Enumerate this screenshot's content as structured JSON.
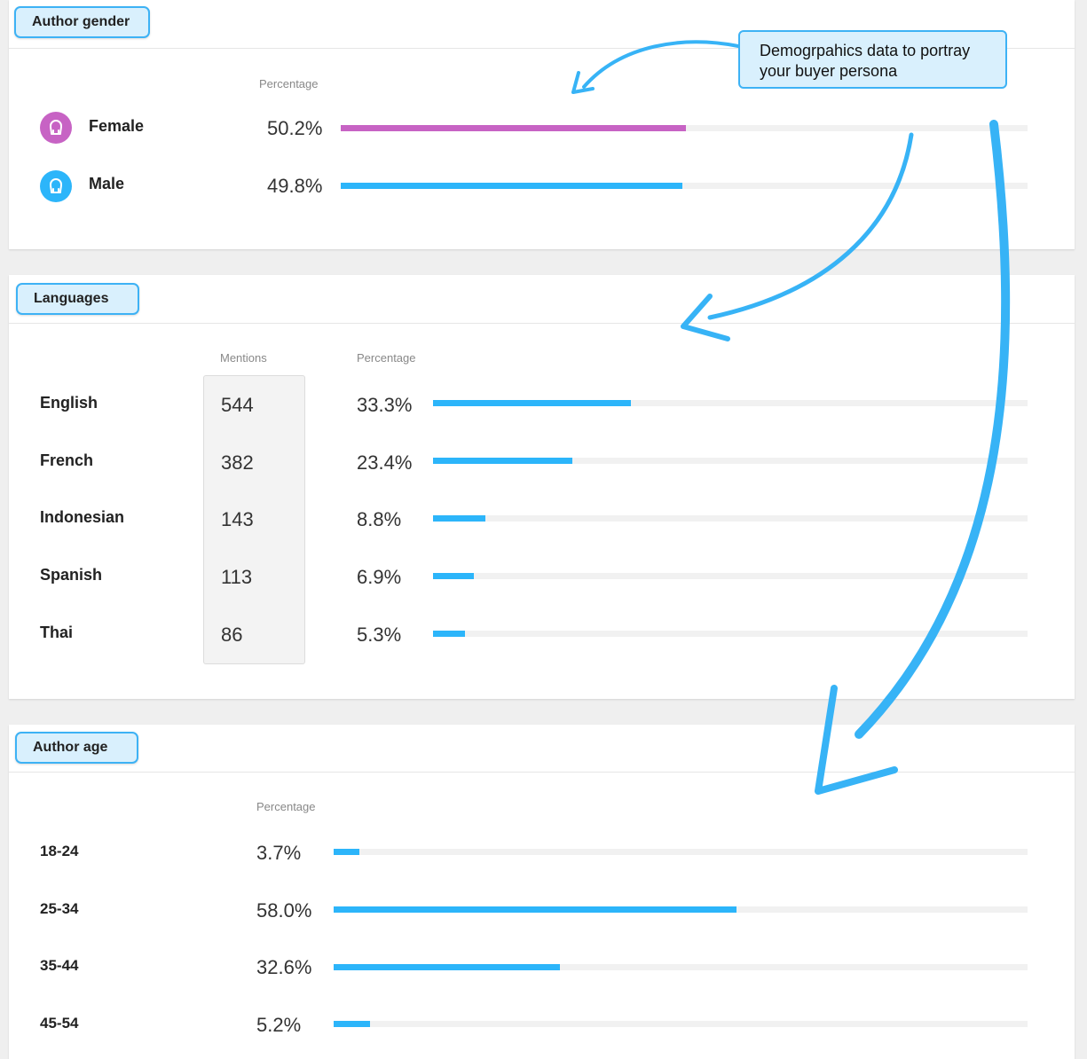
{
  "gender": {
    "tag": "Author gender",
    "col_percentage": "Percentage",
    "rows": [
      {
        "label": "Female",
        "pct_text": "50.2%",
        "value": 50.2
      },
      {
        "label": "Male",
        "pct_text": "49.8%",
        "value": 49.8
      }
    ]
  },
  "languages": {
    "tag": "Languages",
    "col_mentions": "Mentions",
    "col_percentage": "Percentage",
    "rows": [
      {
        "label": "English",
        "mentions": "544",
        "pct_text": "33.3%",
        "value": 33.3
      },
      {
        "label": "French",
        "mentions": "382",
        "pct_text": "23.4%",
        "value": 23.4
      },
      {
        "label": "Indonesian",
        "mentions": "143",
        "pct_text": "8.8%",
        "value": 8.8
      },
      {
        "label": "Spanish",
        "mentions": "113",
        "pct_text": "6.9%",
        "value": 6.9
      },
      {
        "label": "Thai",
        "mentions": "86",
        "pct_text": "5.3%",
        "value": 5.3
      }
    ]
  },
  "age": {
    "tag": "Author age",
    "col_percentage": "Percentage",
    "rows": [
      {
        "label": "18-24",
        "pct_text": "3.7%",
        "value": 3.7
      },
      {
        "label": "25-34",
        "pct_text": "58.0%",
        "value": 58.0
      },
      {
        "label": "35-44",
        "pct_text": "32.6%",
        "value": 32.6
      },
      {
        "label": "45-54",
        "pct_text": "5.2%",
        "value": 5.2
      }
    ]
  },
  "callout": {
    "line1": "Demogrpahics data to portray",
    "line2": "your buyer persona"
  },
  "icons": {
    "female": "female-user-icon",
    "male": "male-user-icon"
  },
  "colors": {
    "accent": "#2cb5fa",
    "female": "#c763c4",
    "tag_fill": "#d9f0fd",
    "tag_border": "#3db2f5"
  }
}
